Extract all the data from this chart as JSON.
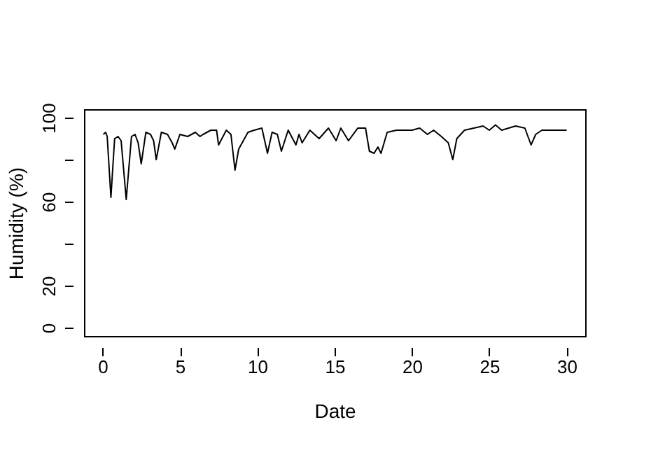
{
  "chart_data": {
    "type": "line",
    "xlabel": "Date",
    "ylabel": "Humidity (%)",
    "xlim": [
      -1.2,
      31.2
    ],
    "ylim": [
      -4,
      104
    ],
    "xticks": [
      0,
      5,
      10,
      15,
      20,
      25,
      30
    ],
    "yticks": [
      0,
      20,
      {
        "value": 40,
        "label": null
      },
      60,
      {
        "value": 80,
        "label": null
      },
      100
    ],
    "grid": false,
    "marker": "none",
    "line_style": "solid",
    "series": [
      {
        "color": "#000000",
        "x": [
          0.05,
          0.2,
          0.3,
          0.54,
          0.78,
          1.0,
          1.2,
          1.53,
          1.87,
          2.1,
          2.3,
          2.5,
          2.8,
          3.1,
          3.3,
          3.47,
          3.8,
          4.2,
          4.5,
          4.67,
          5.0,
          5.5,
          6.0,
          6.3,
          6.5,
          7.0,
          7.37,
          7.5,
          8.0,
          8.3,
          8.56,
          8.8,
          9.4,
          9.8,
          10.3,
          10.66,
          10.96,
          11.3,
          11.56,
          12.0,
          12.5,
          12.7,
          12.9,
          13.4,
          14.0,
          14.6,
          15.1,
          15.4,
          15.9,
          16.5,
          17.0,
          17.25,
          17.55,
          17.8,
          18.0,
          18.4,
          19.0,
          20.0,
          20.5,
          21.0,
          21.4,
          21.9,
          22.35,
          22.64,
          22.9,
          23.4,
          24.0,
          24.6,
          25.0,
          25.4,
          25.8,
          26.7,
          27.3,
          27.7,
          28.0,
          28.4,
          29.0,
          30.0
        ],
        "values": [
          92,
          93,
          91,
          62,
          90,
          91,
          89,
          61,
          91,
          92,
          88,
          78,
          93,
          92,
          89,
          80,
          93,
          92,
          88,
          85,
          92,
          91,
          93,
          91,
          92,
          94,
          94,
          87,
          94,
          92,
          75,
          85,
          93,
          94,
          95,
          83,
          93,
          92,
          84,
          94,
          87,
          92,
          88,
          94,
          90,
          95,
          89,
          95,
          89,
          95,
          95,
          84,
          83,
          86,
          83,
          93,
          94,
          94,
          95,
          92,
          94,
          91,
          88,
          80,
          90,
          94,
          95,
          96,
          94,
          96.5,
          94,
          96,
          95,
          87,
          92,
          94,
          94,
          94
        ]
      }
    ]
  }
}
